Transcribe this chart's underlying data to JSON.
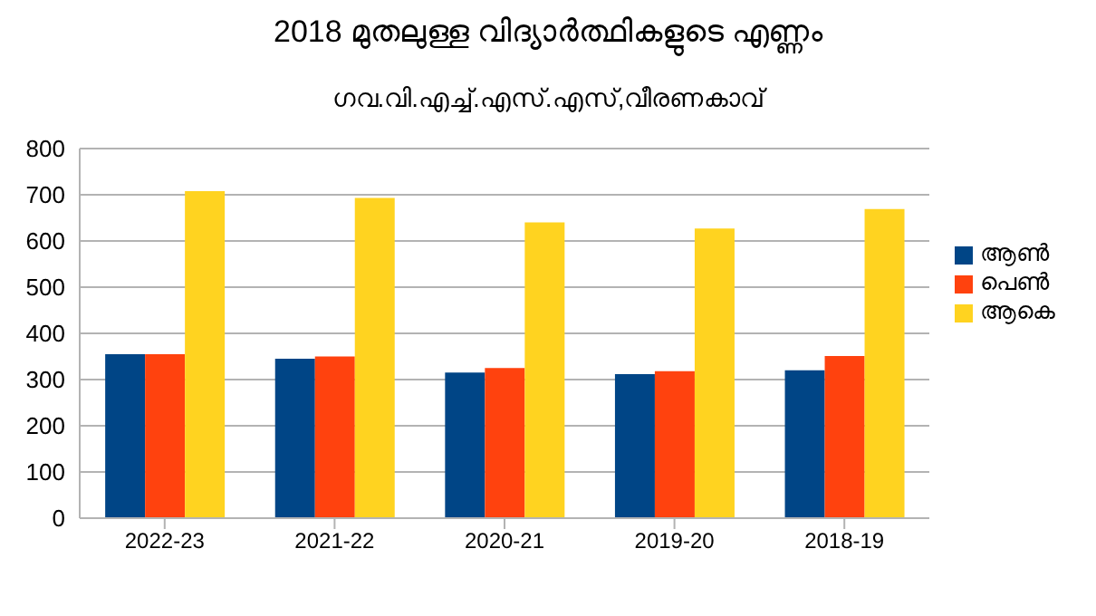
{
  "chart_data": {
    "type": "bar",
    "title": "2018 മുതലുള്ള വിദ്യാർത്ഥികളുടെ എണ്ണം",
    "subtitle": "ഗവ.വി.എച്ച്.എസ്.എസ്,വീരണകാവ്",
    "categories": [
      "2022-23",
      "2021-22",
      "2020-21",
      "2019-20",
      "2018-19"
    ],
    "series": [
      {
        "name": "ആൺ",
        "color": "#004586",
        "values": [
          355,
          345,
          315,
          312,
          320
        ]
      },
      {
        "name": "പെൺ",
        "color": "#ff420e",
        "values": [
          355,
          350,
          325,
          318,
          351
        ]
      },
      {
        "name": "ആകെ",
        "color": "#ffd320",
        "values": [
          708,
          693,
          640,
          627,
          669
        ]
      }
    ],
    "ylim": [
      0,
      800
    ],
    "yticks": [
      0,
      100,
      200,
      300,
      400,
      500,
      600,
      700,
      800
    ],
    "grid": "y",
    "legend": "right"
  }
}
